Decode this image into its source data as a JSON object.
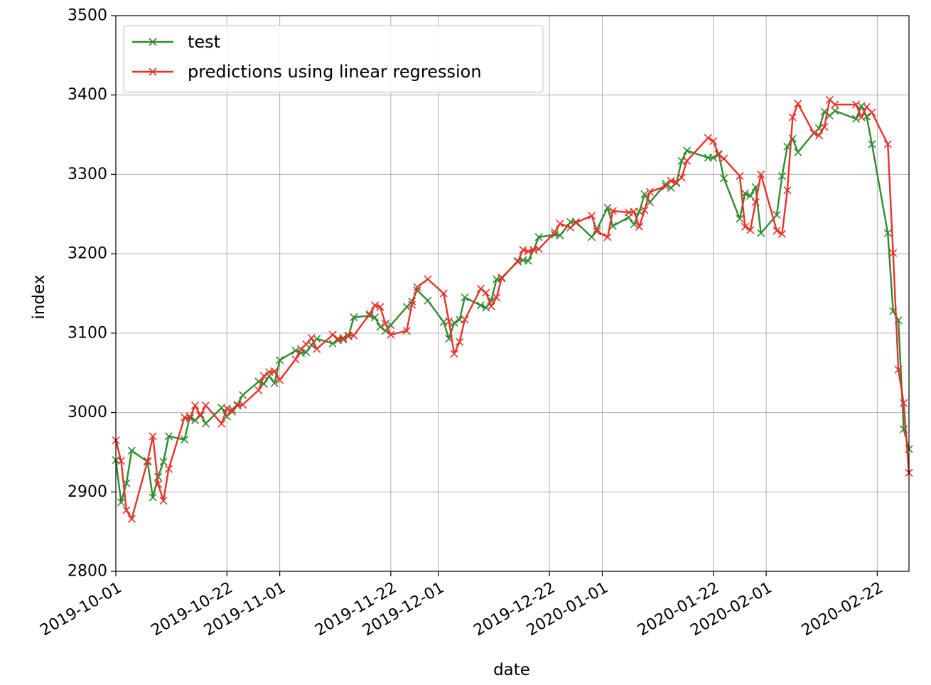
{
  "chart_data": {
    "type": "line",
    "title": "",
    "xlabel": "date",
    "ylabel": "index",
    "xlim": [
      "2019-10-01",
      "2020-02-28"
    ],
    "ylim": [
      2800,
      3500
    ],
    "grid": true,
    "legend_position": "top-left",
    "xticks": [
      "2019-10-01",
      "2019-10-22",
      "2019-11-01",
      "2019-11-22",
      "2019-12-01",
      "2019-12-22",
      "2020-01-01",
      "2020-01-22",
      "2020-02-01",
      "2020-02-22"
    ],
    "yticks": [
      "2800",
      "2900",
      "3000",
      "3100",
      "3200",
      "3300",
      "3400",
      "3500"
    ],
    "series": [
      {
        "name": "test",
        "color": "#2e8b2e",
        "marker": "x",
        "points": [
          [
            "2019-10-01",
            2940
          ],
          [
            "2019-10-02",
            2887
          ],
          [
            "2019-10-03",
            2911
          ],
          [
            "2019-10-04",
            2952
          ],
          [
            "2019-10-07",
            2938
          ],
          [
            "2019-10-08",
            2893
          ],
          [
            "2019-10-09",
            2919
          ],
          [
            "2019-10-10",
            2938
          ],
          [
            "2019-10-11",
            2970
          ],
          [
            "2019-10-14",
            2966
          ],
          [
            "2019-10-15",
            2995
          ],
          [
            "2019-10-16",
            2990
          ],
          [
            "2019-10-17",
            2998
          ],
          [
            "2019-10-18",
            2986
          ],
          [
            "2019-10-21",
            3006
          ],
          [
            "2019-10-22",
            2995
          ],
          [
            "2019-10-23",
            3004
          ],
          [
            "2019-10-24",
            3010
          ],
          [
            "2019-10-25",
            3022
          ],
          [
            "2019-10-28",
            3039
          ],
          [
            "2019-10-29",
            3036
          ],
          [
            "2019-10-30",
            3046
          ],
          [
            "2019-10-31",
            3037
          ],
          [
            "2019-11-01",
            3066
          ],
          [
            "2019-11-04",
            3078
          ],
          [
            "2019-11-05",
            3075
          ],
          [
            "2019-11-06",
            3076
          ],
          [
            "2019-11-07",
            3085
          ],
          [
            "2019-11-08",
            3093
          ],
          [
            "2019-11-11",
            3087
          ],
          [
            "2019-11-12",
            3091
          ],
          [
            "2019-11-13",
            3094
          ],
          [
            "2019-11-14",
            3096
          ],
          [
            "2019-11-15",
            3120
          ],
          [
            "2019-11-18",
            3122
          ],
          [
            "2019-11-19",
            3120
          ],
          [
            "2019-11-20",
            3108
          ],
          [
            "2019-11-21",
            3103
          ],
          [
            "2019-11-22",
            3110
          ],
          [
            "2019-11-25",
            3133
          ],
          [
            "2019-11-26",
            3140
          ],
          [
            "2019-11-27",
            3154
          ],
          [
            "2019-11-29",
            3141
          ],
          [
            "2019-12-02",
            3114
          ],
          [
            "2019-12-03",
            3093
          ],
          [
            "2019-12-04",
            3113
          ],
          [
            "2019-12-05",
            3117
          ],
          [
            "2019-12-06",
            3145
          ],
          [
            "2019-12-09",
            3135
          ],
          [
            "2019-12-10",
            3132
          ],
          [
            "2019-12-11",
            3141
          ],
          [
            "2019-12-12",
            3168
          ],
          [
            "2019-12-13",
            3169
          ],
          [
            "2019-12-16",
            3191
          ],
          [
            "2019-12-17",
            3192
          ],
          [
            "2019-12-18",
            3191
          ],
          [
            "2019-12-19",
            3205
          ],
          [
            "2019-12-20",
            3221
          ],
          [
            "2019-12-23",
            3224
          ],
          [
            "2019-12-24",
            3223
          ],
          [
            "2019-12-26",
            3240
          ],
          [
            "2019-12-27",
            3240
          ],
          [
            "2019-12-30",
            3221
          ],
          [
            "2019-12-31",
            3231
          ],
          [
            "2020-01-02",
            3258
          ],
          [
            "2020-01-03",
            3235
          ],
          [
            "2020-01-06",
            3246
          ],
          [
            "2020-01-07",
            3237
          ],
          [
            "2020-01-08",
            3253
          ],
          [
            "2020-01-09",
            3275
          ],
          [
            "2020-01-10",
            3265
          ],
          [
            "2020-01-13",
            3288
          ],
          [
            "2020-01-14",
            3283
          ],
          [
            "2020-01-15",
            3289
          ],
          [
            "2020-01-16",
            3317
          ],
          [
            "2020-01-17",
            3330
          ],
          [
            "2020-01-21",
            3321
          ],
          [
            "2020-01-22",
            3321
          ],
          [
            "2020-01-23",
            3326
          ],
          [
            "2020-01-24",
            3295
          ],
          [
            "2020-01-27",
            3244
          ],
          [
            "2020-01-28",
            3276
          ],
          [
            "2020-01-29",
            3273
          ],
          [
            "2020-01-30",
            3284
          ],
          [
            "2020-01-31",
            3226
          ],
          [
            "2020-02-03",
            3249
          ],
          [
            "2020-02-04",
            3298
          ],
          [
            "2020-02-05",
            3335
          ],
          [
            "2020-02-06",
            3345
          ],
          [
            "2020-02-07",
            3328
          ],
          [
            "2020-02-10",
            3352
          ],
          [
            "2020-02-11",
            3358
          ],
          [
            "2020-02-12",
            3379
          ],
          [
            "2020-02-13",
            3374
          ],
          [
            "2020-02-14",
            3380
          ],
          [
            "2020-02-18",
            3370
          ],
          [
            "2020-02-19",
            3386
          ],
          [
            "2020-02-20",
            3373
          ],
          [
            "2020-02-21",
            3338
          ],
          [
            "2020-02-24",
            3226
          ],
          [
            "2020-02-25",
            3128
          ],
          [
            "2020-02-26",
            3116
          ],
          [
            "2020-02-27",
            2979
          ],
          [
            "2020-02-28",
            2954
          ]
        ]
      },
      {
        "name": "predictions using linear regression",
        "color": "#e8322b",
        "marker": "x",
        "points": [
          [
            "2019-10-01",
            2965
          ],
          [
            "2019-10-02",
            2939
          ],
          [
            "2019-10-03",
            2877
          ],
          [
            "2019-10-04",
            2866
          ],
          [
            "2019-10-07",
            2939
          ],
          [
            "2019-10-08",
            2970
          ],
          [
            "2019-10-09",
            2910
          ],
          [
            "2019-10-10",
            2889
          ],
          [
            "2019-10-11",
            2929
          ],
          [
            "2019-10-14",
            2994
          ],
          [
            "2019-10-15",
            2993
          ],
          [
            "2019-10-16",
            3009
          ],
          [
            "2019-10-17",
            2996
          ],
          [
            "2019-10-18",
            3009
          ],
          [
            "2019-10-21",
            2986
          ],
          [
            "2019-10-22",
            3005
          ],
          [
            "2019-10-23",
            3001
          ],
          [
            "2019-10-24",
            3009
          ],
          [
            "2019-10-25",
            3010
          ],
          [
            "2019-10-28",
            3028
          ],
          [
            "2019-10-29",
            3046
          ],
          [
            "2019-10-30",
            3051
          ],
          [
            "2019-10-31",
            3052
          ],
          [
            "2019-11-01",
            3041
          ],
          [
            "2019-11-04",
            3067
          ],
          [
            "2019-11-05",
            3080
          ],
          [
            "2019-11-06",
            3086
          ],
          [
            "2019-11-07",
            3094
          ],
          [
            "2019-11-08",
            3080
          ],
          [
            "2019-11-11",
            3098
          ],
          [
            "2019-11-12",
            3093
          ],
          [
            "2019-11-13",
            3092
          ],
          [
            "2019-11-14",
            3097
          ],
          [
            "2019-11-15",
            3097
          ],
          [
            "2019-11-18",
            3124
          ],
          [
            "2019-11-19",
            3135
          ],
          [
            "2019-11-20",
            3133
          ],
          [
            "2019-11-21",
            3112
          ],
          [
            "2019-11-22",
            3098
          ],
          [
            "2019-11-25",
            3103
          ],
          [
            "2019-11-26",
            3136
          ],
          [
            "2019-11-27",
            3158
          ],
          [
            "2019-11-29",
            3168
          ],
          [
            "2019-12-02",
            3150
          ],
          [
            "2019-12-03",
            3115
          ],
          [
            "2019-12-04",
            3074
          ],
          [
            "2019-12-05",
            3089
          ],
          [
            "2019-12-06",
            3117
          ],
          [
            "2019-12-09",
            3156
          ],
          [
            "2019-12-10",
            3151
          ],
          [
            "2019-12-11",
            3134
          ],
          [
            "2019-12-12",
            3145
          ],
          [
            "2019-12-13",
            3170
          ],
          [
            "2019-12-16",
            3190
          ],
          [
            "2019-12-17",
            3205
          ],
          [
            "2019-12-18",
            3203
          ],
          [
            "2019-12-19",
            3205
          ],
          [
            "2019-12-20",
            3206
          ],
          [
            "2019-12-23",
            3227
          ],
          [
            "2019-12-24",
            3238
          ],
          [
            "2019-12-26",
            3233
          ],
          [
            "2019-12-27",
            3239
          ],
          [
            "2019-12-30",
            3248
          ],
          [
            "2019-12-31",
            3228
          ],
          [
            "2020-01-02",
            3221
          ],
          [
            "2020-01-03",
            3254
          ],
          [
            "2020-01-06",
            3252
          ],
          [
            "2020-01-07",
            3253
          ],
          [
            "2020-01-08",
            3234
          ],
          [
            "2020-01-09",
            3255
          ],
          [
            "2020-01-10",
            3278
          ],
          [
            "2020-01-13",
            3285
          ],
          [
            "2020-01-14",
            3292
          ],
          [
            "2020-01-15",
            3290
          ],
          [
            "2020-01-16",
            3296
          ],
          [
            "2020-01-17",
            3317
          ],
          [
            "2020-01-21",
            3346
          ],
          [
            "2020-01-22",
            3342
          ],
          [
            "2020-01-23",
            3325
          ],
          [
            "2020-01-24",
            3320
          ],
          [
            "2020-01-27",
            3298
          ],
          [
            "2020-01-28",
            3234
          ],
          [
            "2020-01-29",
            3230
          ],
          [
            "2020-01-30",
            3265
          ],
          [
            "2020-01-31",
            3300
          ],
          [
            "2020-02-03",
            3229
          ],
          [
            "2020-02-04",
            3225
          ],
          [
            "2020-02-05",
            3280
          ],
          [
            "2020-02-06",
            3372
          ],
          [
            "2020-02-07",
            3389
          ],
          [
            "2020-02-10",
            3352
          ],
          [
            "2020-02-11",
            3349
          ],
          [
            "2020-02-12",
            3360
          ],
          [
            "2020-02-13",
            3394
          ],
          [
            "2020-02-14",
            3388
          ],
          [
            "2020-02-18",
            3388
          ],
          [
            "2020-02-19",
            3372
          ],
          [
            "2020-02-20",
            3385
          ],
          [
            "2020-02-21",
            3378
          ],
          [
            "2020-02-24",
            3338
          ],
          [
            "2020-02-25",
            3201
          ],
          [
            "2020-02-26",
            3054
          ],
          [
            "2020-02-27",
            3012
          ],
          [
            "2020-02-28",
            2924
          ]
        ]
      }
    ]
  }
}
